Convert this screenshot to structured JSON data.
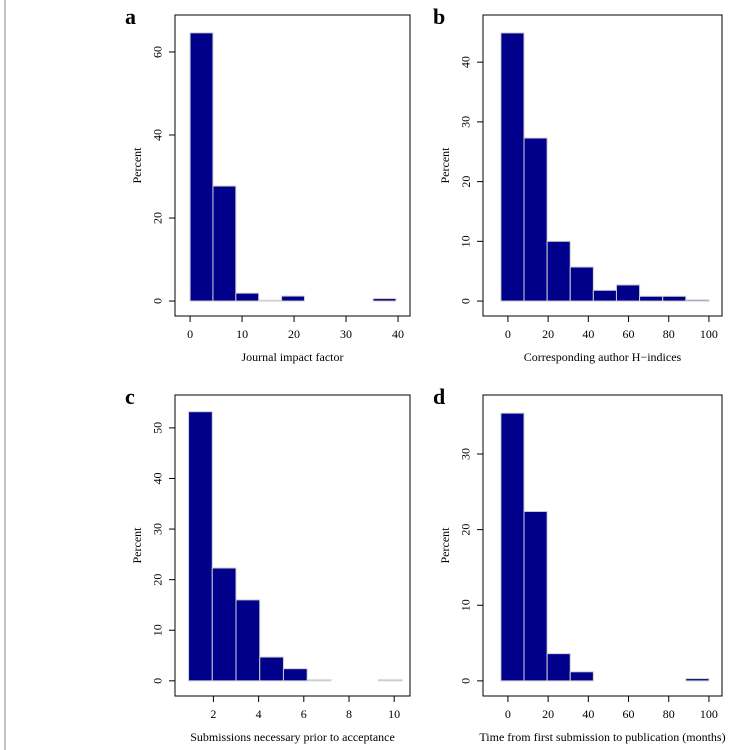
{
  "chart_data": [
    {
      "type": "histogram",
      "label": "a",
      "xlabel": "Journal impact factor",
      "ylabel": "Percent",
      "color": "#00008b",
      "bins": [
        0,
        4.4,
        8.8,
        13.2,
        17.6,
        22,
        26.4,
        30.8,
        35.2,
        39.6
      ],
      "values": [
        64.6,
        27.7,
        1.9,
        0.2,
        1.2,
        0,
        0,
        0,
        0.6
      ],
      "xlim": [
        -2.9,
        42.3
      ],
      "ylim": [
        -3.6,
        68.9
      ],
      "xticks": [
        0,
        10,
        20,
        30,
        40
      ],
      "yticks": [
        0,
        20,
        40,
        60
      ]
    },
    {
      "type": "histogram",
      "label": "b",
      "xlabel": "Corresponding author H−indices",
      "ylabel": "Percent",
      "color": "#00008b",
      "bins": [
        -3.5,
        8,
        19.5,
        31,
        42.5,
        54,
        65.5,
        77,
        88.5,
        100
      ],
      "values": [
        44.9,
        27.3,
        10.0,
        5.7,
        1.8,
        2.7,
        0.8,
        0.8,
        0.2
      ],
      "xlim": [
        -12.4,
        106.5
      ],
      "ylim": [
        -2.5,
        47.9
      ],
      "xticks": [
        0,
        20,
        40,
        60,
        80,
        100
      ],
      "yticks": [
        0,
        10,
        20,
        30,
        40
      ]
    },
    {
      "type": "histogram",
      "label": "c",
      "xlabel": "Submissions necessary prior to acceptance",
      "ylabel": "Percent",
      "color": "#00008b",
      "bins": [
        0.9,
        1.95,
        3.0,
        4.05,
        5.1,
        6.15,
        7.2,
        8.25,
        9.3,
        10.35
      ],
      "values": [
        53.2,
        22.3,
        16.0,
        4.7,
        2.4,
        0.2,
        0,
        0,
        0.2
      ],
      "xlim": [
        0.3,
        10.7
      ],
      "ylim": [
        -3.0,
        56.5
      ],
      "xticks": [
        2,
        4,
        6,
        8,
        10
      ],
      "yticks": [
        0,
        10,
        20,
        30,
        40,
        50
      ]
    },
    {
      "type": "histogram",
      "label": "d",
      "xlabel": "Time from first submission to publication (months)",
      "ylabel": "Percent",
      "color": "#00008b",
      "bins": [
        -3.5,
        8,
        19.5,
        31,
        42.5,
        54,
        65.5,
        77,
        88.5,
        100
      ],
      "values": [
        35.4,
        22.4,
        3.6,
        1.2,
        0,
        0,
        0,
        0,
        0.3
      ],
      "xlim": [
        -12.4,
        106.5
      ],
      "ylim": [
        -2.0,
        37.8
      ],
      "xticks": [
        0,
        20,
        40,
        60,
        80,
        100
      ],
      "yticks": [
        0,
        10,
        20,
        30
      ]
    }
  ]
}
